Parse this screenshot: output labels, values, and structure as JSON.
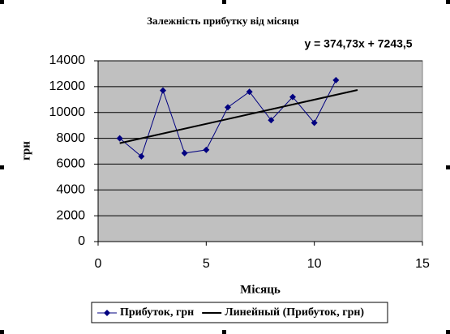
{
  "chart_data": {
    "type": "line",
    "title": "Залежність прибутку від місяця",
    "annotation": "y = 374,73x + 7243,5",
    "xlabel": "Місяць",
    "ylabel": "грн",
    "xlim": [
      0,
      15
    ],
    "xticks": [
      0,
      5,
      10,
      15
    ],
    "ylim": [
      0,
      14000
    ],
    "yticks": [
      0,
      2000,
      4000,
      6000,
      8000,
      10000,
      12000,
      14000
    ],
    "grid": true,
    "legend": "bottom",
    "series": [
      {
        "name": "Прибуток, грн",
        "color": "#000080",
        "marker": "diamond",
        "x": [
          1,
          2,
          3,
          4,
          5,
          6,
          7,
          8,
          9,
          10,
          11
        ],
        "values": [
          8000,
          6600,
          11700,
          6850,
          7100,
          10400,
          11600,
          9400,
          11200,
          9200,
          12500
        ]
      },
      {
        "name": "Линейный (Прибуток, грн)",
        "color": "#000000",
        "marker": "none",
        "x": [
          1,
          12
        ],
        "values": [
          7618.23,
          11740.26
        ]
      }
    ]
  }
}
